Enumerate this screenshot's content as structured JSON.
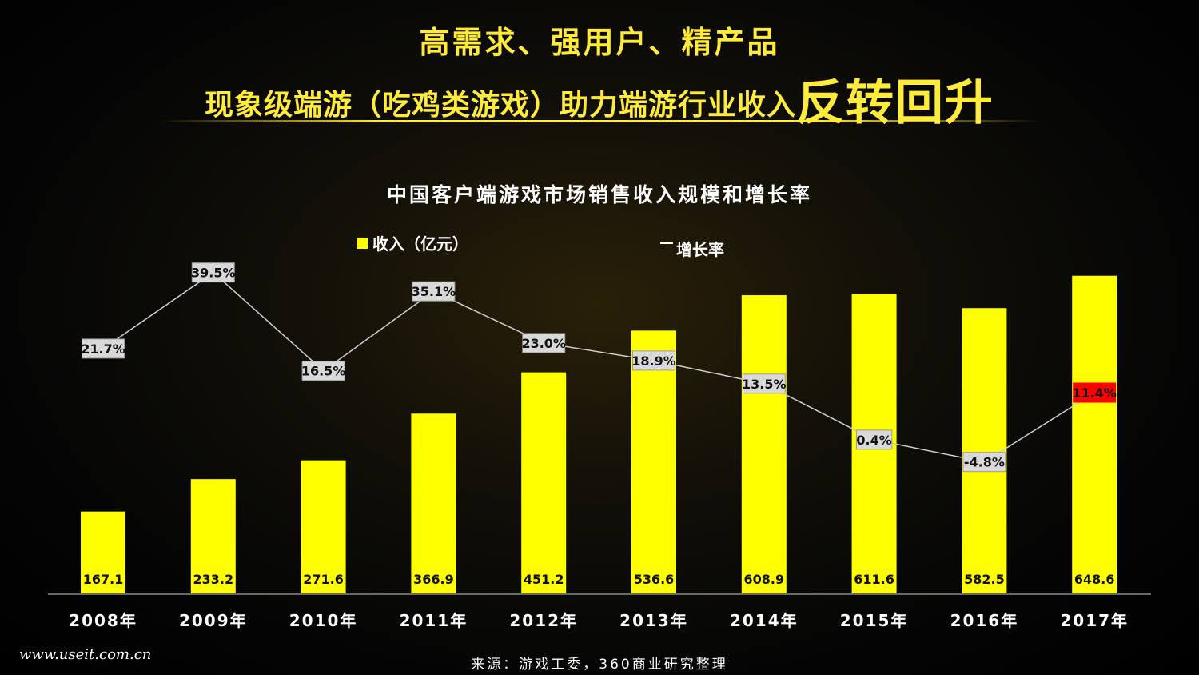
{
  "headline": {
    "line1": "高需求、强用户、精产品",
    "line2_prefix": "现象级端游（吃鸡类游戏）助力端游行业收入",
    "line2_emphasis": "反转回升"
  },
  "colors": {
    "title": "#ffeb3b",
    "bar": "#ffff00",
    "line": "#cfcfcf",
    "label_box": "#d9d9d9",
    "highlight_box": "#ff0000"
  },
  "chart_data": {
    "type": "bar",
    "title": "中国客户端游戏市场销售收入规模和增长率",
    "categories": [
      "2008年",
      "2009年",
      "2010年",
      "2011年",
      "2012年",
      "2013年",
      "2014年",
      "2015年",
      "2016年",
      "2017年"
    ],
    "series": [
      {
        "name": "收入（亿元）",
        "type": "bar",
        "values": [
          167.1,
          233.2,
          271.6,
          366.9,
          451.2,
          536.6,
          608.9,
          611.6,
          582.5,
          648.6
        ],
        "labels": [
          "167.1",
          "233.2",
          "271.6",
          "366.9",
          "451.2",
          "536.6",
          "608.9",
          "611.6",
          "582.5",
          "648.6"
        ]
      },
      {
        "name": "增长率",
        "type": "line",
        "values": [
          21.7,
          39.5,
          16.5,
          35.1,
          23.0,
          18.9,
          13.5,
          0.4,
          -4.8,
          11.4
        ],
        "labels": [
          "21.7%",
          "39.5%",
          "16.5%",
          "35.1%",
          "23.0%",
          "18.9%",
          "13.5%",
          "0.4%",
          "-4.8%",
          "11.4%"
        ],
        "highlight_index": 9
      }
    ],
    "legend": "top"
  },
  "source": "来源：游戏工委，360商业研究整理",
  "watermark": "www.useit.com.cn"
}
